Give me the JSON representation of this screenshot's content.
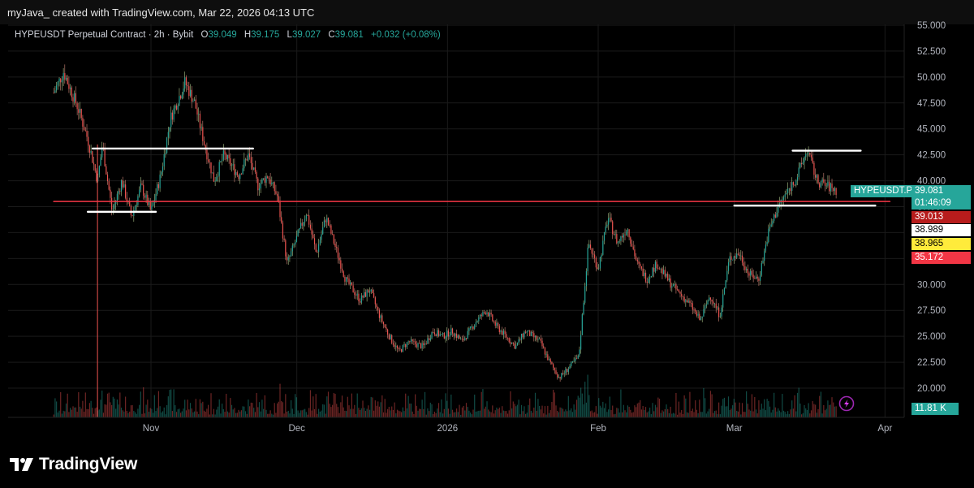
{
  "header": {
    "credit": "myJava_ created with TradingView.com, Mar 22, 2026 04:13 UTC"
  },
  "legend": {
    "symbol": "HYPEUSDT Perpetual Contract · 2h · Bybit",
    "open_label": "O",
    "open": "39.049",
    "high_label": "H",
    "high": "39.175",
    "low_label": "L",
    "low": "39.027",
    "close_label": "C",
    "close": "39.081",
    "change": "+0.032 (+0.08%)"
  },
  "colors": {
    "background": "#000000",
    "up": "#26a69a",
    "down": "#ef5350",
    "candle_wick_up": "#c8e6a0",
    "support_line": "#f23645",
    "drawn_lines": "#ffffff",
    "grid": "#1a1a1a"
  },
  "price_badges": {
    "symbol_label": "HYPEUSDT.P",
    "last_price": "39.081",
    "countdown": "01:46:09",
    "badge_1": "39.013",
    "badge_2": "38.989",
    "badge_3": "38.965",
    "badge_4": "35.172",
    "volume": "11.81 K"
  },
  "chart_data": {
    "type": "candlestick",
    "y_axis": {
      "min": 17.5,
      "max": 55.0,
      "ticks": [
        "55.000",
        "52.500",
        "50.000",
        "47.500",
        "45.000",
        "42.500",
        "40.000",
        "37.500",
        "35.000",
        "32.500",
        "30.000",
        "27.500",
        "25.000",
        "22.500",
        "20.000"
      ]
    },
    "x_axis": {
      "ticks": [
        "Nov",
        "Dec",
        "2026",
        "Feb",
        "Mar",
        "Apr"
      ]
    },
    "price_path": [
      {
        "date": "Oct 12",
        "price": 48.5
      },
      {
        "date": "Oct 14",
        "price": 50.5
      },
      {
        "date": "Oct 17",
        "price": 47.0
      },
      {
        "date": "Oct 19",
        "price": 44.0
      },
      {
        "date": "Oct 21",
        "price": 40.0
      },
      {
        "date": "Oct 22",
        "price": 43.5
      },
      {
        "date": "Oct 24",
        "price": 37.0
      },
      {
        "date": "Oct 26",
        "price": 40.0
      },
      {
        "date": "Oct 28",
        "price": 36.5
      },
      {
        "date": "Oct 30",
        "price": 39.5
      },
      {
        "date": "Nov 1",
        "price": 37.0
      },
      {
        "date": "Nov 3",
        "price": 40.5
      },
      {
        "date": "Nov 5",
        "price": 46.0
      },
      {
        "date": "Nov 8",
        "price": 49.5
      },
      {
        "date": "Nov 10",
        "price": 47.5
      },
      {
        "date": "Nov 12",
        "price": 43.5
      },
      {
        "date": "Nov 14",
        "price": 40.0
      },
      {
        "date": "Nov 16",
        "price": 42.5
      },
      {
        "date": "Nov 19",
        "price": 40.5
      },
      {
        "date": "Nov 21",
        "price": 42.5
      },
      {
        "date": "Nov 23",
        "price": 39.5
      },
      {
        "date": "Nov 25",
        "price": 40.5
      },
      {
        "date": "Nov 27",
        "price": 38.5
      },
      {
        "date": "Nov 29",
        "price": 32.0
      },
      {
        "date": "Dec 1",
        "price": 34.5
      },
      {
        "date": "Dec 3",
        "price": 37.0
      },
      {
        "date": "Dec 5",
        "price": 33.0
      },
      {
        "date": "Dec 7",
        "price": 36.5
      },
      {
        "date": "Dec 9",
        "price": 33.5
      },
      {
        "date": "Dec 11",
        "price": 30.5
      },
      {
        "date": "Dec 14",
        "price": 28.5
      },
      {
        "date": "Dec 16",
        "price": 29.5
      },
      {
        "date": "Dec 18",
        "price": 27.0
      },
      {
        "date": "Dec 20",
        "price": 25.0
      },
      {
        "date": "Dec 22",
        "price": 23.5
      },
      {
        "date": "Dec 24",
        "price": 24.5
      },
      {
        "date": "Dec 27",
        "price": 24.0
      },
      {
        "date": "Dec 29",
        "price": 25.5
      },
      {
        "date": "Dec 31",
        "price": 25.0
      },
      {
        "date": "Jan 2",
        "price": 25.5
      },
      {
        "date": "Jan 4",
        "price": 24.5
      },
      {
        "date": "Jan 7",
        "price": 26.5
      },
      {
        "date": "Jan 9",
        "price": 27.5
      },
      {
        "date": "Jan 11",
        "price": 26.0
      },
      {
        "date": "Jan 13",
        "price": 25.0
      },
      {
        "date": "Jan 15",
        "price": 24.0
      },
      {
        "date": "Jan 17",
        "price": 25.5
      },
      {
        "date": "Jan 20",
        "price": 24.5
      },
      {
        "date": "Jan 22",
        "price": 22.5
      },
      {
        "date": "Jan 24",
        "price": 21.0
      },
      {
        "date": "Jan 26",
        "price": 22.0
      },
      {
        "date": "Jan 28",
        "price": 23.0
      },
      {
        "date": "Jan 30",
        "price": 34.0
      },
      {
        "date": "Feb 1",
        "price": 31.5
      },
      {
        "date": "Feb 3",
        "price": 36.5
      },
      {
        "date": "Feb 5",
        "price": 34.0
      },
      {
        "date": "Feb 7",
        "price": 35.5
      },
      {
        "date": "Feb 9",
        "price": 32.0
      },
      {
        "date": "Feb 11",
        "price": 30.5
      },
      {
        "date": "Feb 13",
        "price": 32.0
      },
      {
        "date": "Feb 16",
        "price": 30.0
      },
      {
        "date": "Feb 18",
        "price": 29.0
      },
      {
        "date": "Feb 20",
        "price": 28.0
      },
      {
        "date": "Feb 22",
        "price": 26.5
      },
      {
        "date": "Feb 24",
        "price": 29.0
      },
      {
        "date": "Feb 26",
        "price": 27.0
      },
      {
        "date": "Feb 28",
        "price": 32.5
      },
      {
        "date": "Mar 2",
        "price": 33.0
      },
      {
        "date": "Mar 4",
        "price": 31.0
      },
      {
        "date": "Mar 6",
        "price": 30.5
      },
      {
        "date": "Mar 8",
        "price": 35.0
      },
      {
        "date": "Mar 10",
        "price": 37.5
      },
      {
        "date": "Mar 12",
        "price": 39.0
      },
      {
        "date": "Mar 14",
        "price": 40.5
      },
      {
        "date": "Mar 16",
        "price": 43.0
      },
      {
        "date": "Mar 18",
        "price": 40.0
      },
      {
        "date": "Mar 20",
        "price": 39.5
      },
      {
        "date": "Mar 22",
        "price": 39.08
      }
    ],
    "horizontal_levels": [
      {
        "price": 38.0,
        "from": "Oct 12",
        "to": "Apr 2",
        "color": "#f23645"
      },
      {
        "price": 43.1,
        "from": "Oct 20",
        "to": "Nov 22",
        "color": "#ffffff"
      },
      {
        "price": 37.0,
        "from": "Oct 19",
        "to": "Nov 2",
        "color": "#ffffff"
      },
      {
        "price": 42.9,
        "from": "Mar 13",
        "to": "Mar 27",
        "color": "#ffffff"
      },
      {
        "price": 37.6,
        "from": "Mar 1",
        "to": "Mar 30",
        "color": "#ffffff"
      }
    ]
  }
}
